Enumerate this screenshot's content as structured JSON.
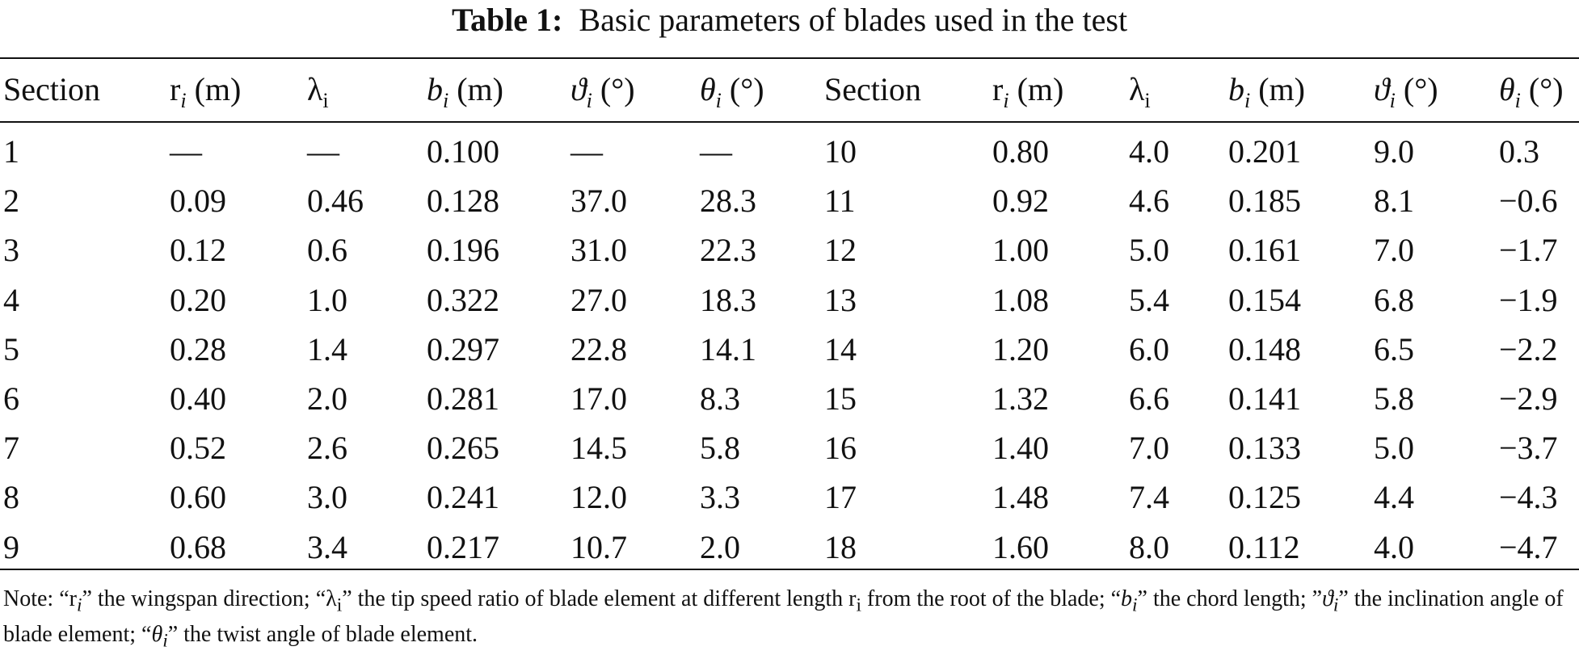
{
  "caption": {
    "label": "Table 1:",
    "text": "Basic parameters of blades used in the test"
  },
  "headers": {
    "section": "Section",
    "r_sym": "r",
    "r_sub": "i",
    "r_unit": "(m)",
    "lambda_sym": "λ",
    "lambda_sub": "i",
    "b_sym": "b",
    "b_sub": "i",
    "b_unit": "(m)",
    "vartheta_sym": "ϑ",
    "vartheta_sub": "i",
    "vartheta_unit": "(°)",
    "theta_sym": "θ",
    "theta_sub": "i",
    "theta_unit": "(°)"
  },
  "rows": [
    [
      "1",
      "—",
      "—",
      "0.100",
      "—",
      "—",
      "10",
      "0.80",
      "4.0",
      "0.201",
      "9.0",
      "0.3"
    ],
    [
      "2",
      "0.09",
      "0.46",
      "0.128",
      "37.0",
      "28.3",
      "11",
      "0.92",
      "4.6",
      "0.185",
      "8.1",
      "−0.6"
    ],
    [
      "3",
      "0.12",
      "0.6",
      "0.196",
      "31.0",
      "22.3",
      "12",
      "1.00",
      "5.0",
      "0.161",
      "7.0",
      "−1.7"
    ],
    [
      "4",
      "0.20",
      "1.0",
      "0.322",
      "27.0",
      "18.3",
      "13",
      "1.08",
      "5.4",
      "0.154",
      "6.8",
      "−1.9"
    ],
    [
      "5",
      "0.28",
      "1.4",
      "0.297",
      "22.8",
      "14.1",
      "14",
      "1.20",
      "6.0",
      "0.148",
      "6.5",
      "−2.2"
    ],
    [
      "6",
      "0.40",
      "2.0",
      "0.281",
      "17.0",
      "8.3",
      "15",
      "1.32",
      "6.6",
      "0.141",
      "5.8",
      "−2.9"
    ],
    [
      "7",
      "0.52",
      "2.6",
      "0.265",
      "14.5",
      "5.8",
      "16",
      "1.40",
      "7.0",
      "0.133",
      "5.0",
      "−3.7"
    ],
    [
      "8",
      "0.60",
      "3.0",
      "0.241",
      "12.0",
      "3.3",
      "17",
      "1.48",
      "7.4",
      "0.125",
      "4.4",
      "−4.3"
    ],
    [
      "9",
      "0.68",
      "3.4",
      "0.217",
      "10.7",
      "2.0",
      "18",
      "1.60",
      "8.0",
      "0.112",
      "4.0",
      "−4.7"
    ]
  ],
  "note": {
    "prefix": "Note: “",
    "r_sym": "r",
    "r_sub": "i",
    "p1": "” the wingspan direction; “",
    "lambda_sym": "λ",
    "lambda_sub": "i",
    "p2": "” the tip speed ratio of blade element at different length r",
    "r2_sub": "i",
    "p3": " from the root of the blade; “",
    "b_sym": "b",
    "b_sub": "i",
    "p4": "” the chord length; ”",
    "vartheta_sym": "ϑ",
    "vartheta_sub": "i",
    "p5": "” the inclination angle of blade element; “",
    "theta_sym": "θ",
    "theta_sub": "i",
    "p6": "” the twist angle of blade element."
  }
}
